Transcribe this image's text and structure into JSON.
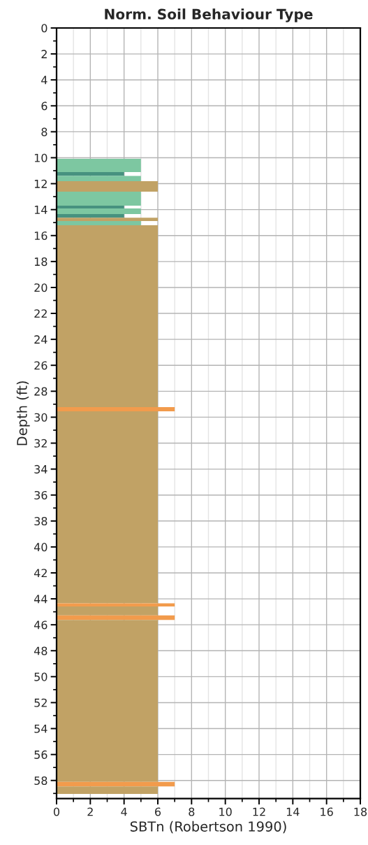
{
  "chart_data": {
    "type": "histogram",
    "orientation": "horizontal",
    "title": "Norm. Soil Behaviour Type",
    "xlabel": "SBTn (Robertson 1990)",
    "ylabel": "Depth (ft)",
    "xlim": [
      0,
      18
    ],
    "xticks": [
      0,
      {
        "value": 1,
        "label": null
      },
      2,
      {
        "value": 3,
        "label": null
      },
      4,
      {
        "value": 5,
        "label": null
      },
      6,
      {
        "value": 7,
        "label": null
      },
      8,
      {
        "value": 9,
        "label": null
      },
      10,
      {
        "value": 11,
        "label": null
      },
      12,
      {
        "value": 13,
        "label": null
      },
      14,
      {
        "value": 15,
        "label": null
      },
      16,
      {
        "value": 17,
        "label": null
      },
      18
    ],
    "ylim": [
      59.4,
      0
    ],
    "yticks": [
      0,
      {
        "value": 1,
        "label": null
      },
      2,
      {
        "value": 3,
        "label": null
      },
      4,
      {
        "value": 5,
        "label": null
      },
      6,
      {
        "value": 7,
        "label": null
      },
      8,
      {
        "value": 9,
        "label": null
      },
      10,
      {
        "value": 11,
        "label": null
      },
      12,
      {
        "value": 13,
        "label": null
      },
      14,
      {
        "value": 15,
        "label": null
      },
      16,
      {
        "value": 17,
        "label": null
      },
      18,
      {
        "value": 19,
        "label": null
      },
      20,
      {
        "value": 21,
        "label": null
      },
      22,
      {
        "value": 23,
        "label": null
      },
      24,
      {
        "value": 25,
        "label": null
      },
      26,
      {
        "value": 27,
        "label": null
      },
      28,
      {
        "value": 29,
        "label": null
      },
      30,
      {
        "value": 31,
        "label": null
      },
      32,
      {
        "value": 33,
        "label": null
      },
      34,
      {
        "value": 35,
        "label": null
      },
      36,
      {
        "value": 37,
        "label": null
      },
      38,
      {
        "value": 39,
        "label": null
      },
      40,
      {
        "value": 41,
        "label": null
      },
      42,
      {
        "value": 43,
        "label": null
      },
      44,
      {
        "value": 45,
        "label": null
      },
      46,
      {
        "value": 47,
        "label": null
      },
      48,
      {
        "value": 49,
        "label": null
      },
      50,
      {
        "value": 51,
        "label": null
      },
      52,
      {
        "value": 53,
        "label": null
      },
      54,
      {
        "value": 55,
        "label": null
      },
      56,
      {
        "value": 57,
        "label": null
      },
      58,
      {
        "value": 59,
        "label": null
      }
    ],
    "grid": true,
    "bins": [
      10.08,
      11.11,
      11.41,
      11.81,
      12.62,
      13.69,
      13.91,
      14.34,
      14.63,
      14.88,
      15.2,
      29.22,
      29.55,
      44.34,
      44.59,
      45.27,
      45.63,
      58.11,
      58.46,
      59.04
    ],
    "values": [
      5,
      4,
      5,
      6,
      5,
      4,
      5,
      4,
      6,
      5,
      6,
      7,
      6,
      7,
      6,
      7,
      6,
      7,
      6
    ],
    "colors": [
      "#7dc7a1",
      "#47927f",
      "#7dc7a1",
      "#c1a265",
      "#7dc7a1",
      "#47927f",
      "#7dc7a1",
      "#47927f",
      "#c1a265",
      "#7dc7a1",
      "#c1a265",
      "#f29b4c",
      "#c1a265",
      "#f29b4c",
      "#c1a265",
      "#f29b4c",
      "#c1a265",
      "#f29b4c",
      "#c1a265"
    ]
  }
}
